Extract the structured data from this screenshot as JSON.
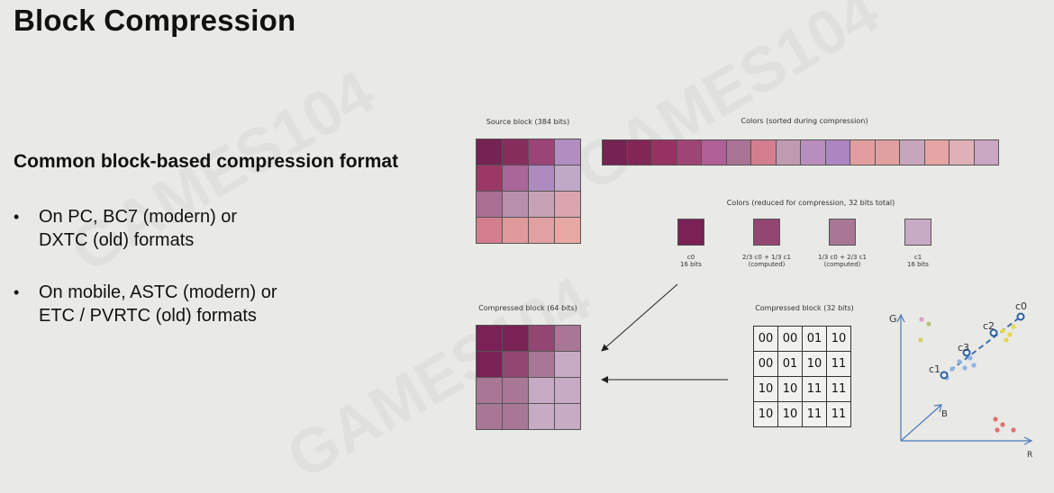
{
  "title": "Block Compression",
  "subtitle": "Common block-based compression format",
  "bullets": [
    "On PC,  BC7 (modern) or\nDXTC (old) formats",
    "On mobile, ASTC (modern) or\nETC / PVRTC (old) formats"
  ],
  "watermark": "GAMES104",
  "diagram": {
    "source_caption": "Source block (384 bits)",
    "source_colors": [
      "#742352",
      "#862d5b",
      "#9a4478",
      "#b08ec0",
      "#9c3865",
      "#ab6699",
      "#ae8abf",
      "#c0a8c7",
      "#a96e92",
      "#b890ae",
      "#c5a3b5",
      "#dba4ae",
      "#d47d8e",
      "#e09a9e",
      "#e1a1a2",
      "#e7a8a4"
    ],
    "sorted_caption": "Colors (sorted during compression)",
    "sorted_colors": [
      "#742352",
      "#822655",
      "#963262",
      "#a04476",
      "#b05f97",
      "#a97394",
      "#d47d8e",
      "#c09aae",
      "#b88ebc",
      "#ad85c1",
      "#e29d9e",
      "#e0a0a0",
      "#c7a6bd",
      "#e6a4a4",
      "#e0b0b6",
      "#c9a6c1"
    ],
    "reduced_caption": "Colors (reduced for compression, 32 bits total)",
    "reduced": [
      {
        "color": "#7a2155",
        "label": "c0\n16 bits"
      },
      {
        "color": "#944673",
        "label": "2/3 c0 + 1/3 c1\n(computed)"
      },
      {
        "color": "#a87796",
        "label": "1/3 c0 + 2/3 c1\n(computed)"
      },
      {
        "color": "#c7aac4",
        "label": "c1\n16 bits"
      }
    ],
    "compressed_caption": "Compressed block (64 bits)",
    "compressed_colors": [
      "#7a2155",
      "#7a2155",
      "#944673",
      "#a87796",
      "#7a2155",
      "#944673",
      "#a87796",
      "#c7aac4",
      "#a87796",
      "#a87796",
      "#c7aac4",
      "#c7aac4",
      "#a87796",
      "#a87796",
      "#c7aac4",
      "#c7aac4"
    ],
    "bits_caption": "Compressed block (32 bits)",
    "bits": [
      [
        "00",
        "00",
        "01",
        "10"
      ],
      [
        "00",
        "01",
        "10",
        "11"
      ],
      [
        "10",
        "10",
        "11",
        "11"
      ],
      [
        "10",
        "10",
        "11",
        "11"
      ]
    ]
  },
  "plot": {
    "axis_g": "G",
    "axis_r": "R",
    "axis_b": "B",
    "labels": [
      "c0",
      "c2",
      "c3",
      "c1"
    ]
  }
}
